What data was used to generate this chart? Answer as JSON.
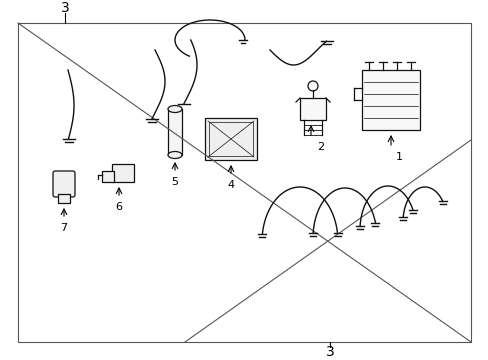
{
  "bg_color": "#ffffff",
  "border_color": "#555555",
  "line_color": "#333333",
  "text_color": "#000000",
  "fig_width": 4.89,
  "fig_height": 3.6,
  "dpi": 100,
  "part_color": "#111111",
  "arrow_color": "#111111"
}
